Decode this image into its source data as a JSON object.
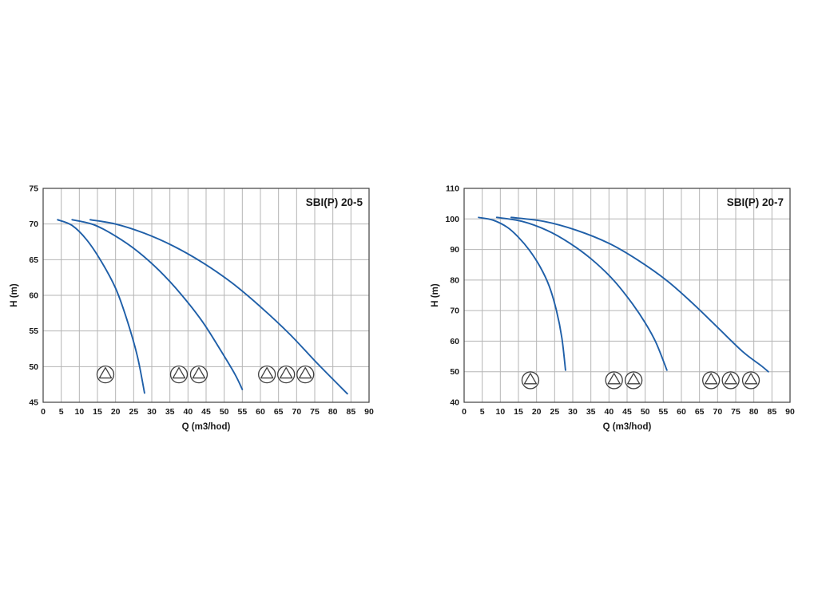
{
  "page": {
    "background": "#ffffff"
  },
  "chart_data": [
    {
      "type": "line",
      "title": "SBI(P) 20-5",
      "xlabel": "Q (m3/hod)",
      "ylabel": "H (m)",
      "xlim": [
        0,
        90
      ],
      "ylim": [
        45,
        75
      ],
      "x_ticks": [
        0,
        5,
        10,
        15,
        20,
        25,
        30,
        35,
        40,
        45,
        50,
        55,
        60,
        65,
        70,
        75,
        80,
        85,
        90
      ],
      "y_ticks": [
        45,
        50,
        55,
        60,
        65,
        70,
        75
      ],
      "grid": true,
      "curve_color": "#1f5fa8",
      "grid_color": "#b5b5b5",
      "border_color": "#404040",
      "series": [
        {
          "name": "1 pump",
          "points": [
            [
              4,
              70.6
            ],
            [
              8,
              69.8
            ],
            [
              12,
              67.8
            ],
            [
              16,
              64.8
            ],
            [
              20,
              61.0
            ],
            [
              23,
              56.8
            ],
            [
              26,
              51.5
            ],
            [
              28,
              46.3
            ]
          ]
        },
        {
          "name": "2 pumps",
          "points": [
            [
              8,
              70.6
            ],
            [
              14,
              69.9
            ],
            [
              20,
              68.3
            ],
            [
              26,
              66.2
            ],
            [
              32,
              63.5
            ],
            [
              38,
              60.2
            ],
            [
              44,
              56.3
            ],
            [
              49,
              52.3
            ],
            [
              53,
              48.9
            ],
            [
              55,
              46.8
            ]
          ]
        },
        {
          "name": "3 pumps",
          "points": [
            [
              13,
              70.6
            ],
            [
              20,
              70.0
            ],
            [
              28,
              68.7
            ],
            [
              36,
              66.9
            ],
            [
              44,
              64.6
            ],
            [
              52,
              61.8
            ],
            [
              60,
              58.4
            ],
            [
              68,
              54.6
            ],
            [
              76,
              50.3
            ],
            [
              84,
              46.2
            ]
          ]
        }
      ],
      "pump_markers": {
        "y": 48.9,
        "x": [
          17.2,
          37.5,
          43.0,
          61.8,
          67.1,
          72.4
        ]
      }
    },
    {
      "type": "line",
      "title": "SBI(P) 20-7",
      "xlabel": "Q (m3/hod)",
      "ylabel": "H (m)",
      "xlim": [
        0,
        90
      ],
      "ylim": [
        40,
        110
      ],
      "x_ticks": [
        0,
        5,
        10,
        15,
        20,
        25,
        30,
        35,
        40,
        45,
        50,
        55,
        60,
        65,
        70,
        75,
        80,
        85,
        90
      ],
      "y_ticks": [
        40,
        50,
        60,
        70,
        80,
        90,
        100,
        110
      ],
      "grid": true,
      "curve_color": "#1f5fa8",
      "grid_color": "#b5b5b5",
      "border_color": "#404040",
      "series": [
        {
          "name": "1 pump",
          "points": [
            [
              4,
              100.5
            ],
            [
              8,
              99.6
            ],
            [
              12,
              97.2
            ],
            [
              15,
              94.0
            ],
            [
              18,
              89.8
            ],
            [
              21,
              84.3
            ],
            [
              23.5,
              78.0
            ],
            [
              25.5,
              70.0
            ],
            [
              27,
              61.0
            ],
            [
              28,
              50.5
            ]
          ]
        },
        {
          "name": "2 pumps",
          "points": [
            [
              9,
              100.5
            ],
            [
              16,
              99.2
            ],
            [
              23,
              96.2
            ],
            [
              29,
              92.2
            ],
            [
              35,
              87.0
            ],
            [
              41,
              80.3
            ],
            [
              46,
              73.0
            ],
            [
              50,
              66.0
            ],
            [
              53,
              59.5
            ],
            [
              56,
              50.5
            ]
          ]
        },
        {
          "name": "3 pumps",
          "points": [
            [
              13,
              100.5
            ],
            [
              22,
              99.2
            ],
            [
              31,
              96.3
            ],
            [
              40,
              92.0
            ],
            [
              48,
              86.5
            ],
            [
              56,
              79.8
            ],
            [
              63,
              72.5
            ],
            [
              70,
              64.5
            ],
            [
              77,
              56.5
            ],
            [
              82,
              52.0
            ],
            [
              84,
              50.0
            ]
          ]
        }
      ],
      "pump_markers": {
        "y": 47.2,
        "x": [
          18.3,
          41.4,
          46.8,
          68.2,
          73.6,
          79.2
        ]
      }
    }
  ]
}
